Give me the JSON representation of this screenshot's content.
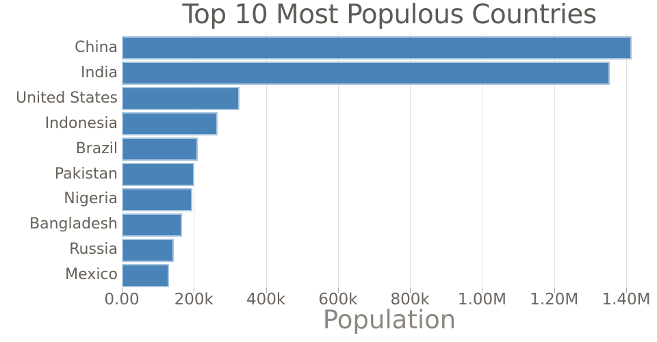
{
  "chart_data": {
    "type": "bar",
    "orientation": "horizontal",
    "title": "Top 10 Most Populous Countries",
    "xlabel": "Population",
    "ylabel": "",
    "units": "population in thousands",
    "categories": [
      "China",
      "India",
      "United States",
      "Indonesia",
      "Brazil",
      "Pakistan",
      "Nigeria",
      "Bangladesh",
      "Russia",
      "Mexico"
    ],
    "values": [
      1415046,
      1354052,
      326767,
      266795,
      210868,
      200814,
      195875,
      166368,
      143965,
      130759
    ],
    "xlim": [
      0,
      1485500
    ],
    "xticks": [
      {
        "value": 0,
        "label": "0.00"
      },
      {
        "value": 200000,
        "label": "200k"
      },
      {
        "value": 400000,
        "label": "400k"
      },
      {
        "value": 600000,
        "label": "600k"
      },
      {
        "value": 800000,
        "label": "800k"
      },
      {
        "value": 1000000,
        "label": "1.00M"
      },
      {
        "value": 1200000,
        "label": "1.20M"
      },
      {
        "value": 1400000,
        "label": "1.40M"
      }
    ],
    "grid": "vertical-gridlines-only",
    "legend": "none",
    "colors": {
      "bar_fill": "#4a83b8",
      "bar_edge": "#a9c6e0",
      "gridline": "#e0dfdd",
      "tick_mark": "#aba7a2",
      "title_text": "#5e5a56",
      "axis_tick_text": "#6b6560",
      "axis_title_text": "#8c8781"
    }
  }
}
